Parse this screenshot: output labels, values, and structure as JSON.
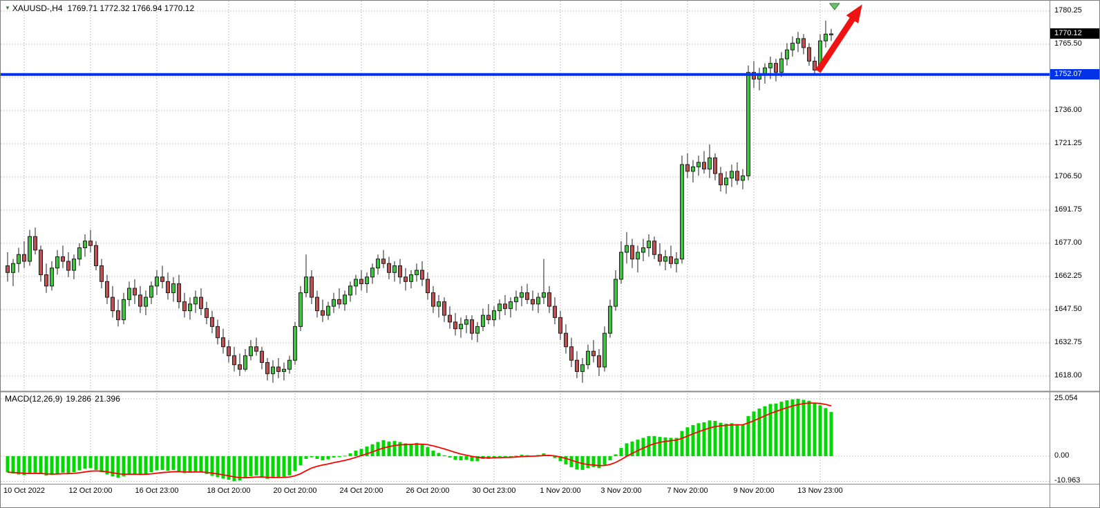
{
  "header": {
    "symbol": "XAUUSD-,H4",
    "ohlc": "1769.71 1772.32 1766.94 1770.12"
  },
  "icons": {
    "symbol_marker": "▼"
  },
  "chart_data": {
    "type": "candlestick",
    "symbol": "XAUUSD",
    "timeframe": "H4",
    "title": "XAUUSD-,H4",
    "current_bar": {
      "open": 1769.71,
      "high": 1772.32,
      "low": 1766.94,
      "close": 1770.12
    },
    "grid": {
      "top_price": 1780.25,
      "step": 14.75,
      "levels": 12,
      "grid_on": true,
      "style": "dashed"
    },
    "price_axis": {
      "ticks": [
        {
          "label": "1780.25",
          "price": 1780.25
        },
        {
          "label": "1765.50",
          "price": 1765.5
        },
        {
          "label": "1736.00",
          "price": 1736.0
        },
        {
          "label": "1721.25",
          "price": 1721.25
        },
        {
          "label": "1706.50",
          "price": 1706.5
        },
        {
          "label": "1691.75",
          "price": 1691.75
        },
        {
          "label": "1677.00",
          "price": 1677.0
        },
        {
          "label": "1662.25",
          "price": 1662.25
        },
        {
          "label": "1647.50",
          "price": 1647.5
        },
        {
          "label": "1632.75",
          "price": 1632.75
        },
        {
          "label": "1618.00",
          "price": 1618.0
        }
      ],
      "current_tag": {
        "label": "1770.12",
        "price": 1770.12,
        "bg": "#000000",
        "color": "#ffffff"
      },
      "line_tag": {
        "label": "1752.07",
        "price": 1752.07,
        "bg": "#0032e6",
        "color": "#ffffff"
      }
    },
    "time_axis": {
      "ticks": [
        {
          "label": "10 Oct 2022",
          "i": 3
        },
        {
          "label": "12 Oct 20:00",
          "i": 15
        },
        {
          "label": "16 Oct 23:00",
          "i": 27
        },
        {
          "label": "18 Oct 20:00",
          "i": 40
        },
        {
          "label": "20 Oct 20:00",
          "i": 52
        },
        {
          "label": "24 Oct 20:00",
          "i": 64
        },
        {
          "label": "26 Oct 20:00",
          "i": 76
        },
        {
          "label": "30 Oct 23:00",
          "i": 88
        },
        {
          "label": "1 Nov 20:00",
          "i": 100
        },
        {
          "label": "3 Nov 20:00",
          "i": 111
        },
        {
          "label": "7 Nov 20:00",
          "i": 123
        },
        {
          "label": "9 Nov 20:00",
          "i": 135
        },
        {
          "label": "13 Nov 23:00",
          "i": 147
        }
      ]
    },
    "hline": {
      "price": 1752.07,
      "color": "#0032e6",
      "width": 4
    },
    "candles": [
      [
        1667,
        1673,
        1660,
        1664
      ],
      [
        1664,
        1670,
        1658,
        1668
      ],
      [
        1668,
        1675,
        1664,
        1672
      ],
      [
        1672,
        1678,
        1666,
        1669
      ],
      [
        1669,
        1683,
        1667,
        1680
      ],
      [
        1680,
        1684,
        1672,
        1674
      ],
      [
        1674,
        1676,
        1660,
        1663
      ],
      [
        1663,
        1668,
        1655,
        1658
      ],
      [
        1658,
        1669,
        1656,
        1666
      ],
      [
        1666,
        1674,
        1663,
        1671
      ],
      [
        1671,
        1676,
        1666,
        1669
      ],
      [
        1669,
        1673,
        1662,
        1665
      ],
      [
        1665,
        1672,
        1661,
        1670
      ],
      [
        1670,
        1677,
        1667,
        1675
      ],
      [
        1675,
        1681,
        1671,
        1678
      ],
      [
        1678,
        1683,
        1673,
        1676
      ],
      [
        1676,
        1678,
        1665,
        1667
      ],
      [
        1667,
        1670,
        1657,
        1660
      ],
      [
        1660,
        1663,
        1650,
        1653
      ],
      [
        1653,
        1658,
        1644,
        1647
      ],
      [
        1647,
        1652,
        1640,
        1643
      ],
      [
        1643,
        1655,
        1641,
        1652
      ],
      [
        1652,
        1660,
        1649,
        1657
      ],
      [
        1657,
        1661,
        1650,
        1654
      ],
      [
        1654,
        1658,
        1646,
        1649
      ],
      [
        1649,
        1656,
        1645,
        1653
      ],
      [
        1653,
        1660,
        1650,
        1658
      ],
      [
        1658,
        1665,
        1654,
        1662
      ],
      [
        1662,
        1667,
        1657,
        1660
      ],
      [
        1660,
        1664,
        1652,
        1655
      ],
      [
        1655,
        1662,
        1651,
        1659
      ],
      [
        1659,
        1663,
        1648,
        1651
      ],
      [
        1651,
        1655,
        1644,
        1647
      ],
      [
        1647,
        1653,
        1643,
        1650
      ],
      [
        1650,
        1656,
        1646,
        1653
      ],
      [
        1653,
        1657,
        1645,
        1648
      ],
      [
        1648,
        1651,
        1641,
        1644
      ],
      [
        1644,
        1647,
        1637,
        1640
      ],
      [
        1640,
        1643,
        1632,
        1635
      ],
      [
        1635,
        1639,
        1628,
        1631
      ],
      [
        1631,
        1634,
        1624,
        1627
      ],
      [
        1627,
        1631,
        1620,
        1623
      ],
      [
        1623,
        1628,
        1618,
        1621
      ],
      [
        1621,
        1630,
        1620,
        1627
      ],
      [
        1627,
        1634,
        1625,
        1631
      ],
      [
        1631,
        1635,
        1627,
        1629
      ],
      [
        1629,
        1631,
        1621,
        1624
      ],
      [
        1624,
        1626,
        1616,
        1619
      ],
      [
        1619,
        1625,
        1615,
        1622
      ],
      [
        1622,
        1626,
        1617,
        1620
      ],
      [
        1620,
        1624,
        1616,
        1621
      ],
      [
        1621,
        1627,
        1619,
        1625
      ],
      [
        1625,
        1642,
        1623,
        1640
      ],
      [
        1640,
        1658,
        1638,
        1655
      ],
      [
        1655,
        1672,
        1653,
        1662
      ],
      [
        1662,
        1665,
        1650,
        1653
      ],
      [
        1653,
        1656,
        1644,
        1647
      ],
      [
        1647,
        1652,
        1642,
        1645
      ],
      [
        1645,
        1651,
        1643,
        1649
      ],
      [
        1649,
        1655,
        1646,
        1652
      ],
      [
        1652,
        1657,
        1648,
        1650
      ],
      [
        1650,
        1656,
        1647,
        1654
      ],
      [
        1654,
        1660,
        1651,
        1658
      ],
      [
        1658,
        1663,
        1654,
        1661
      ],
      [
        1661,
        1665,
        1656,
        1659
      ],
      [
        1659,
        1664,
        1655,
        1662
      ],
      [
        1662,
        1668,
        1659,
        1666
      ],
      [
        1666,
        1672,
        1663,
        1670
      ],
      [
        1670,
        1674,
        1666,
        1668
      ],
      [
        1668,
        1671,
        1661,
        1664
      ],
      [
        1664,
        1669,
        1660,
        1667
      ],
      [
        1667,
        1670,
        1659,
        1662
      ],
      [
        1662,
        1666,
        1656,
        1660
      ],
      [
        1660,
        1665,
        1657,
        1663
      ],
      [
        1663,
        1668,
        1660,
        1665
      ],
      [
        1665,
        1669,
        1658,
        1661
      ],
      [
        1661,
        1664,
        1652,
        1655
      ],
      [
        1655,
        1658,
        1646,
        1649
      ],
      [
        1649,
        1654,
        1644,
        1651
      ],
      [
        1651,
        1653,
        1642,
        1645
      ],
      [
        1645,
        1649,
        1639,
        1642
      ],
      [
        1642,
        1646,
        1636,
        1639
      ],
      [
        1639,
        1644,
        1635,
        1641
      ],
      [
        1641,
        1645,
        1637,
        1643
      ],
      [
        1643,
        1645,
        1634,
        1637
      ],
      [
        1637,
        1642,
        1633,
        1640
      ],
      [
        1640,
        1648,
        1638,
        1645
      ],
      [
        1645,
        1650,
        1641,
        1643
      ],
      [
        1643,
        1649,
        1640,
        1647
      ],
      [
        1647,
        1652,
        1643,
        1650
      ],
      [
        1650,
        1654,
        1645,
        1648
      ],
      [
        1648,
        1653,
        1644,
        1651
      ],
      [
        1651,
        1656,
        1647,
        1653
      ],
      [
        1653,
        1658,
        1649,
        1655
      ],
      [
        1655,
        1659,
        1650,
        1652
      ],
      [
        1652,
        1656,
        1647,
        1650
      ],
      [
        1650,
        1655,
        1646,
        1653
      ],
      [
        1653,
        1670,
        1650,
        1655
      ],
      [
        1655,
        1658,
        1646,
        1649
      ],
      [
        1649,
        1653,
        1641,
        1644
      ],
      [
        1644,
        1647,
        1634,
        1637
      ],
      [
        1637,
        1641,
        1628,
        1631
      ],
      [
        1631,
        1635,
        1622,
        1625
      ],
      [
        1625,
        1629,
        1617,
        1620
      ],
      [
        1620,
        1626,
        1615,
        1623
      ],
      [
        1623,
        1632,
        1621,
        1629
      ],
      [
        1629,
        1634,
        1624,
        1627
      ],
      [
        1627,
        1630,
        1618,
        1622
      ],
      [
        1622,
        1640,
        1620,
        1637
      ],
      [
        1637,
        1652,
        1635,
        1649
      ],
      [
        1649,
        1665,
        1647,
        1661
      ],
      [
        1661,
        1678,
        1659,
        1673
      ],
      [
        1673,
        1682,
        1668,
        1676
      ],
      [
        1676,
        1679,
        1666,
        1670
      ],
      [
        1670,
        1676,
        1664,
        1673
      ],
      [
        1673,
        1679,
        1669,
        1675
      ],
      [
        1675,
        1681,
        1671,
        1678
      ],
      [
        1678,
        1680,
        1670,
        1672
      ],
      [
        1672,
        1677,
        1667,
        1669
      ],
      [
        1669,
        1674,
        1665,
        1671
      ],
      [
        1671,
        1676,
        1666,
        1668
      ],
      [
        1668,
        1673,
        1664,
        1670
      ],
      [
        1670,
        1716,
        1668,
        1712
      ],
      [
        1712,
        1717,
        1706,
        1709
      ],
      [
        1709,
        1714,
        1704,
        1711
      ],
      [
        1711,
        1716,
        1707,
        1713
      ],
      [
        1713,
        1718,
        1708,
        1710
      ],
      [
        1710,
        1721,
        1706,
        1715
      ],
      [
        1715,
        1717,
        1705,
        1708
      ],
      [
        1708,
        1711,
        1700,
        1703
      ],
      [
        1703,
        1709,
        1699,
        1706
      ],
      [
        1706,
        1712,
        1702,
        1709
      ],
      [
        1709,
        1713,
        1703,
        1705
      ],
      [
        1705,
        1710,
        1701,
        1707
      ],
      [
        1707,
        1756,
        1705,
        1753
      ],
      [
        1753,
        1758,
        1746,
        1750
      ],
      [
        1750,
        1755,
        1745,
        1752
      ],
      [
        1752,
        1757,
        1748,
        1755
      ],
      [
        1755,
        1760,
        1750,
        1757
      ],
      [
        1757,
        1759,
        1749,
        1753
      ],
      [
        1753,
        1762,
        1751,
        1759
      ],
      [
        1759,
        1766,
        1756,
        1763
      ],
      [
        1763,
        1769,
        1760,
        1766
      ],
      [
        1766,
        1771,
        1762,
        1768
      ],
      [
        1768,
        1770,
        1761,
        1764
      ],
      [
        1764,
        1766,
        1756,
        1758
      ],
      [
        1758,
        1760,
        1752,
        1754
      ],
      [
        1754,
        1770,
        1753,
        1767
      ],
      [
        1767,
        1776,
        1764,
        1770
      ],
      [
        1769.71,
        1772.32,
        1766.94,
        1770.12
      ]
    ],
    "macd": {
      "label": "MACD(12,26,9)",
      "main_value": "19.286",
      "signal_value": "21.396",
      "signal_period": 9,
      "bar_color": "#00d800",
      "signal_color": "#ff0000",
      "levels": [
        {
          "label": "25.054",
          "value": 25.054
        },
        {
          "label": "0.00",
          "value": 0
        },
        {
          "label": "-10.963",
          "value": -10.963
        }
      ],
      "histogram": [
        -7.0,
        -7.6,
        -8.0,
        -8.3,
        -7.8,
        -7.2,
        -7.8,
        -8.5,
        -8.2,
        -7.6,
        -7.2,
        -7.5,
        -7.0,
        -6.2,
        -5.5,
        -5.2,
        -6.0,
        -7.0,
        -8.0,
        -8.8,
        -9.4,
        -8.8,
        -8.0,
        -7.8,
        -8.2,
        -7.8,
        -7.0,
        -6.2,
        -6.0,
        -6.4,
        -6.0,
        -6.6,
        -7.4,
        -7.2,
        -6.6,
        -7.0,
        -7.8,
        -8.6,
        -9.2,
        -9.8,
        -10.3,
        -10.963,
        -10.6,
        -9.6,
        -8.8,
        -8.4,
        -9.0,
        -9.9,
        -9.6,
        -9.3,
        -9.0,
        -8.4,
        -6.5,
        -4.0,
        -1.2,
        -0.5,
        -1.2,
        -1.8,
        -1.4,
        -0.6,
        -0.4,
        0.2,
        1.2,
        2.4,
        3.2,
        4.2,
        5.2,
        6.2,
        7.0,
        6.4,
        6.6,
        6.2,
        5.6,
        5.4,
        5.8,
        5.2,
        4.0,
        2.4,
        1.4,
        0.4,
        -0.6,
        -1.6,
        -1.8,
        -1.6,
        -2.2,
        -2.2,
        -1.2,
        -1.2,
        -0.6,
        -0.2,
        -0.4,
        -0.2,
        0.2,
        0.6,
        0.4,
        0.2,
        0.5,
        1.2,
        0.4,
        -0.8,
        -2.2,
        -3.6,
        -4.8,
        -5.8,
        -6.0,
        -5.2,
        -4.8,
        -5.2,
        -3.8,
        -1.8,
        0.8,
        3.6,
        5.6,
        6.4,
        7.2,
        8.0,
        8.8,
        8.8,
        8.4,
        8.2,
        8.0,
        8.0,
        11.0,
        12.6,
        13.6,
        14.4,
        14.8,
        15.6,
        15.4,
        14.6,
        14.2,
        14.4,
        14.0,
        13.8,
        17.5,
        19.5,
        20.8,
        21.8,
        22.8,
        23.0,
        23.8,
        24.4,
        24.8,
        25.054,
        24.6,
        24.2,
        23.2,
        22.2,
        21.0,
        19.286
      ]
    },
    "annotations": {
      "arrow": {
        "from_index": 146.6,
        "from_price": 1753.5,
        "to_index": 154.6,
        "to_price": 1783.2,
        "color": "#ee1212",
        "shaft_width": 9
      },
      "shift_marker": {
        "index": 149.6,
        "color": "#6cbf6c"
      }
    },
    "colors": {
      "up": "#3cc43c",
      "down": "#c05050",
      "outline": "#1c1c1c",
      "grid": "#c6c6c6",
      "axis_text": "#000000",
      "background": "#ffffff",
      "separator": "#8a8a8a"
    }
  }
}
